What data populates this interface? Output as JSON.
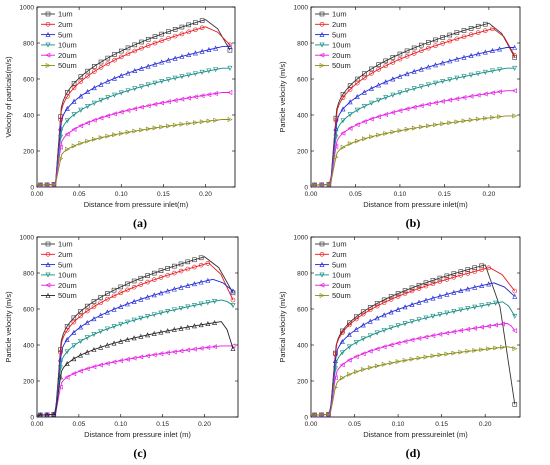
{
  "chart_data": [
    {
      "type": "line",
      "panel_label": "(a)",
      "xlabel": "Distance from pressure inlet(m)",
      "ylabel": "Velocity of particals(m/s)",
      "xlim": [
        0,
        0.235
      ],
      "ylim": [
        0,
        1000
      ],
      "xticks": [
        "0.00",
        "0.05",
        "0.10",
        "0.15",
        "0.20"
      ],
      "yticks": [
        "0",
        "200",
        "400",
        "600",
        "800",
        "1000"
      ],
      "legend_position": "top-left",
      "series": [
        {
          "name": "1um",
          "color": "#333333",
          "marker": "square",
          "plateau": 930,
          "peak_x": 0.2,
          "end_value": 760
        },
        {
          "name": "2um",
          "color": "#e8181d",
          "marker": "circle",
          "plateau": 890,
          "peak_x": 0.2,
          "end_value": 790
        },
        {
          "name": "5um",
          "color": "#1f27d8",
          "marker": "triangle-up",
          "plateau": 780,
          "peak_x": 0.22,
          "end_value": 780
        },
        {
          "name": "10um",
          "color": "#108c82",
          "marker": "triangle-down",
          "plateau": 660,
          "peak_x": 0.22,
          "end_value": 660
        },
        {
          "name": "20um",
          "color": "#e619e6",
          "marker": "triangle-left",
          "plateau": 525,
          "peak_x": 0.22,
          "end_value": 525
        },
        {
          "name": "50um",
          "color": "#8b8b17",
          "marker": "triangle-right",
          "plateau": 375,
          "peak_x": 0.22,
          "end_value": 375
        }
      ]
    },
    {
      "type": "line",
      "panel_label": "(b)",
      "xlabel": "Distance from pressure inlet(m)",
      "ylabel": "Particle velocity (m/s)",
      "xlim": [
        0,
        0.235
      ],
      "ylim": [
        0,
        1000
      ],
      "xticks": [
        "0.00",
        "0.05",
        "0.10",
        "0.15",
        "0.20"
      ],
      "yticks": [
        "0",
        "200",
        "400",
        "600",
        "800",
        "1000"
      ],
      "legend_position": "top-left",
      "series": [
        {
          "name": "1um",
          "color": "#333333",
          "marker": "square",
          "plateau": 910,
          "peak_x": 0.2,
          "end_value": 720
        },
        {
          "name": "2um",
          "color": "#e8181d",
          "marker": "circle",
          "plateau": 880,
          "peak_x": 0.205,
          "end_value": 730
        },
        {
          "name": "5um",
          "color": "#1f27d8",
          "marker": "triangle-up",
          "plateau": 775,
          "peak_x": 0.22,
          "end_value": 775
        },
        {
          "name": "10um",
          "color": "#108c82",
          "marker": "triangle-down",
          "plateau": 660,
          "peak_x": 0.22,
          "end_value": 660
        },
        {
          "name": "20um",
          "color": "#e619e6",
          "marker": "triangle-left",
          "plateau": 535,
          "peak_x": 0.22,
          "end_value": 535
        },
        {
          "name": "50um",
          "color": "#8b8b17",
          "marker": "triangle-right",
          "plateau": 395,
          "peak_x": 0.22,
          "end_value": 395
        }
      ]
    },
    {
      "type": "line",
      "panel_label": "(c)",
      "xlabel": "Distance from pressure inlet (m)",
      "ylabel": "Particle velocity (m/s)",
      "xlim": [
        0,
        0.24
      ],
      "ylim": [
        0,
        1000
      ],
      "xticks": [
        "0.00",
        "0.05",
        "0.10",
        "0.15",
        "0.20"
      ],
      "yticks": [
        "0",
        "200",
        "400",
        "600",
        "800",
        "1000"
      ],
      "legend_position": "top-left",
      "series": [
        {
          "name": "1um",
          "color": "#333333",
          "marker": "square",
          "plateau": 890,
          "peak_x": 0.2,
          "end_value": 690
        },
        {
          "name": "2um",
          "color": "#e8181d",
          "marker": "circle",
          "plateau": 855,
          "peak_x": 0.205,
          "end_value": 650
        },
        {
          "name": "5um",
          "color": "#1f27d8",
          "marker": "triangle-up",
          "plateau": 765,
          "peak_x": 0.21,
          "end_value": 700
        },
        {
          "name": "10um",
          "color": "#108c82",
          "marker": "triangle-down",
          "plateau": 650,
          "peak_x": 0.22,
          "end_value": 620
        },
        {
          "name": "20um",
          "color": "#e619e6",
          "marker": "triangle-left",
          "plateau": 395,
          "peak_x": 0.22,
          "end_value": 395
        },
        {
          "name": "50um",
          "color": "#222222",
          "marker": "triangle-up-open",
          "plateau": 530,
          "peak_x": 0.22,
          "end_value": 380
        }
      ]
    },
    {
      "type": "line",
      "panel_label": "(d)",
      "xlabel": "Distance from pressureinlet (m)",
      "ylabel": "Partical velocity (m/s)",
      "xlim": [
        0,
        0.24
      ],
      "ylim": [
        0,
        1000
      ],
      "xticks": [
        "0.00",
        "0.05",
        "0.10",
        "0.15",
        "0.20"
      ],
      "yticks": [
        "0",
        "200",
        "400",
        "600",
        "800",
        "1000"
      ],
      "legend_position": "top-left",
      "series": [
        {
          "name": "1um",
          "color": "#333333",
          "marker": "square",
          "plateau": 845,
          "peak_x": 0.2,
          "end_value": 70
        },
        {
          "name": "2um",
          "color": "#e8181d",
          "marker": "circle",
          "plateau": 830,
          "peak_x": 0.205,
          "end_value": 700
        },
        {
          "name": "5um",
          "color": "#1f27d8",
          "marker": "triangle-up",
          "plateau": 745,
          "peak_x": 0.21,
          "end_value": 670
        },
        {
          "name": "10um",
          "color": "#108c82",
          "marker": "triangle-down",
          "plateau": 640,
          "peak_x": 0.22,
          "end_value": 560
        },
        {
          "name": "20um",
          "color": "#e619e6",
          "marker": "triangle-left",
          "plateau": 520,
          "peak_x": 0.225,
          "end_value": 480
        },
        {
          "name": "50um",
          "color": "#8b8b17",
          "marker": "triangle-right",
          "plateau": 390,
          "peak_x": 0.225,
          "end_value": 380
        }
      ]
    }
  ]
}
